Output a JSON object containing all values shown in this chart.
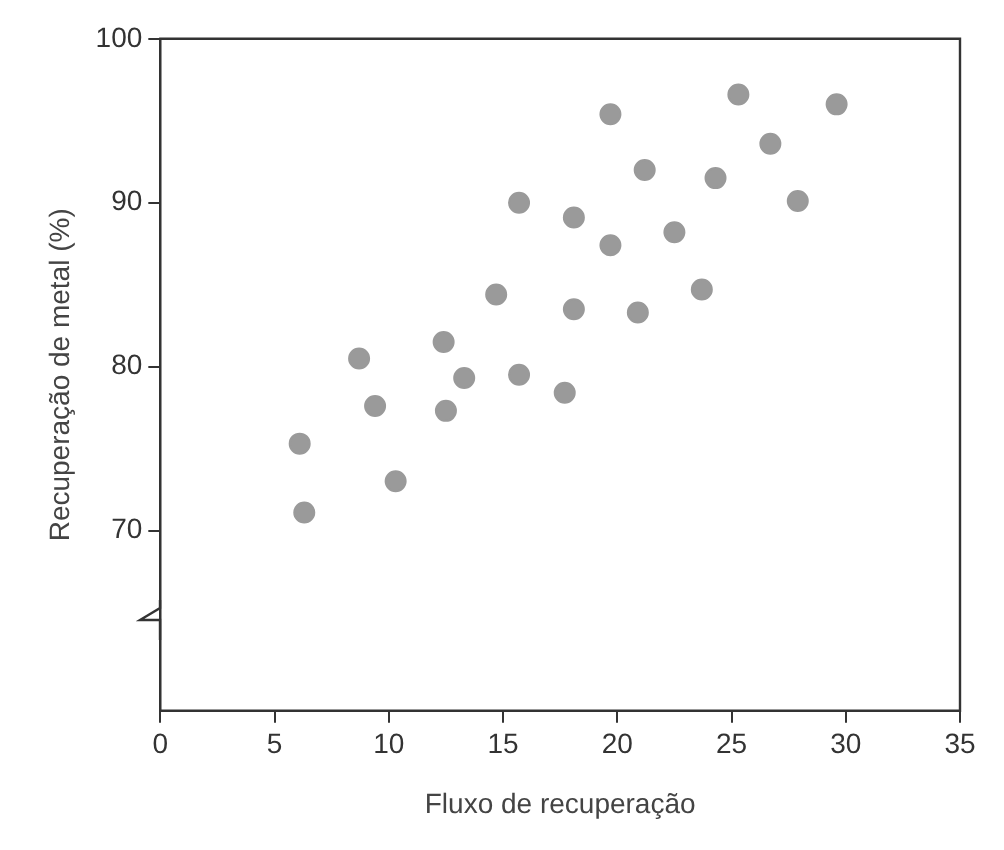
{
  "chart_data": {
    "type": "scatter",
    "xlabel": "Fluxo de recuperação",
    "ylabel": "Recuperação de metal (%)",
    "x": [
      6.1,
      6.3,
      8.7,
      9.4,
      10.3,
      12.4,
      12.5,
      13.3,
      14.7,
      15.7,
      15.7,
      18.1,
      18.1,
      17.7,
      19.7,
      19.7,
      20.9,
      21.2,
      22.5,
      23.7,
      24.3,
      25.3,
      26.7,
      27.9,
      29.6
    ],
    "series": [
      {
        "color": "#9a9a9a",
        "values": [
          75.3,
          71.1,
          80.5,
          77.6,
          73.0,
          81.5,
          77.3,
          79.3,
          84.4,
          90.0,
          79.5,
          89.1,
          83.5,
          78.4,
          95.4,
          87.4,
          83.3,
          92.0,
          88.2,
          84.7,
          91.5,
          96.6,
          93.6,
          90.1,
          96.0
        ]
      }
    ],
    "xlim": [
      0,
      35
    ],
    "xticks": [
      0,
      5,
      10,
      15,
      20,
      25,
      30,
      35
    ],
    "ylim": [
      59,
      100
    ],
    "yticks": [
      70,
      80,
      90,
      100
    ],
    "grid": false,
    "legend": false,
    "marker": "circle"
  }
}
